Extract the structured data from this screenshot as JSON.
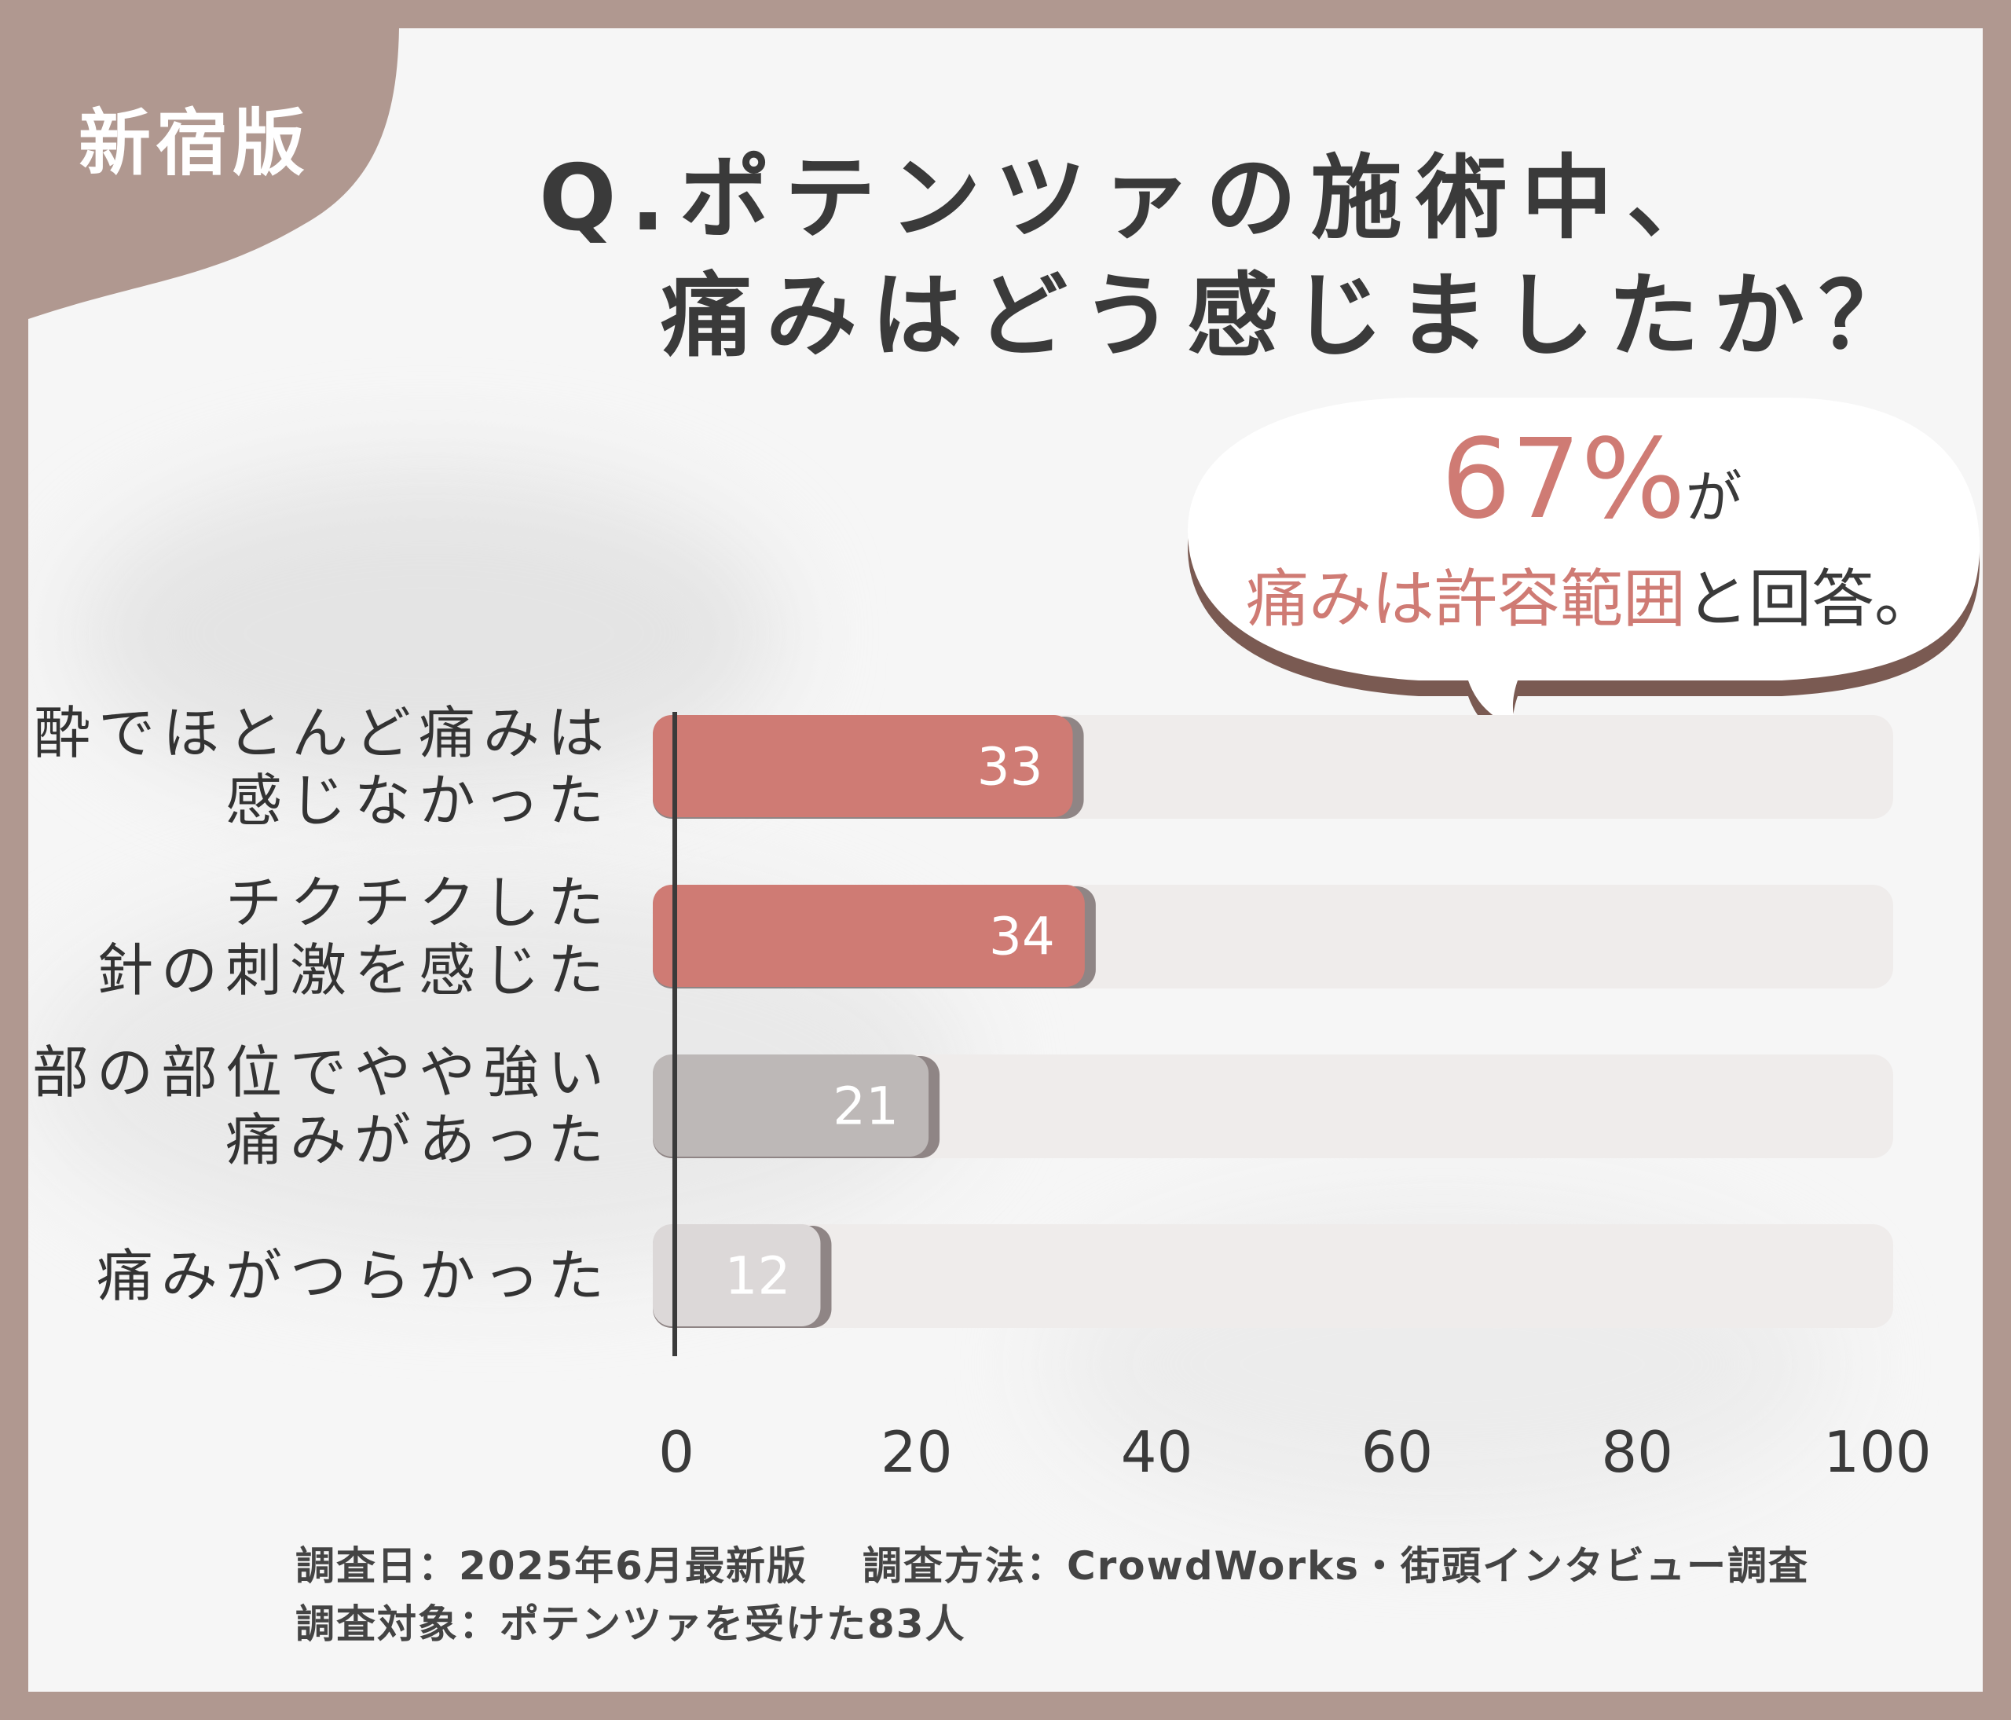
{
  "badge": {
    "label": "新宿版"
  },
  "title": {
    "line1": "Q.ポテンツァの施術中、",
    "line2": "痛みはどう感じましたか？"
  },
  "callout": {
    "percent": "67%",
    "percent_suffix": "が",
    "highlight": "痛みは許容範囲",
    "rest": "と回答。"
  },
  "footer": {
    "survey_date": "調査日：2025年6月最新版",
    "survey_method": "調査方法：CrowdWorks・街頭インタビュー調査",
    "survey_target": "調査対象：ポテンツァを受けた83人"
  },
  "chart_data": {
    "type": "bar",
    "orientation": "horizontal",
    "categories": [
      [
        "麻酔でほとんど痛みは",
        "感じなかった"
      ],
      [
        "チクチクした",
        "針の刺激を感じた"
      ],
      [
        "一部の部位でやや強い",
        "痛みがあった"
      ],
      [
        "痛みがつらかった"
      ]
    ],
    "values": [
      33,
      34,
      21,
      12
    ],
    "value_labels": [
      "33",
      "34",
      "21",
      "12"
    ],
    "xlim": [
      0,
      100
    ],
    "xticks": [
      0,
      20,
      40,
      60,
      80,
      100
    ],
    "bar_colors": [
      "#cf7b74",
      "#cf7b74",
      "#bdb8b7",
      "#dcd8d8"
    ],
    "track_color": "#efeceb",
    "grid": false,
    "legend": "none"
  },
  "colors": {
    "frame": "#b09890",
    "background": "#f6f6f6",
    "accent": "#cf7b74",
    "text": "#3a3a3a"
  }
}
